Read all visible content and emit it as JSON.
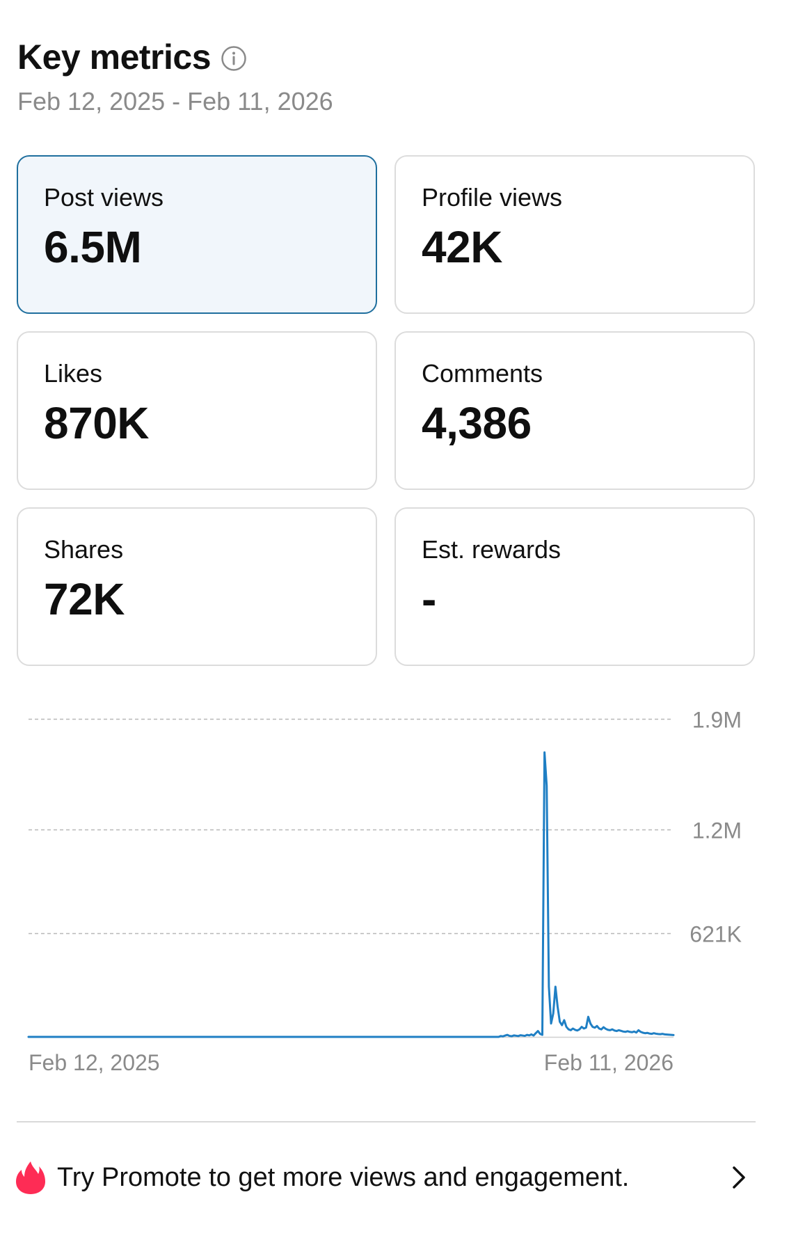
{
  "header": {
    "title": "Key metrics",
    "date_range": "Feb 12, 2025 - Feb 11, 2026"
  },
  "icons": {
    "info": "info-circle-icon",
    "flame": "flame-icon",
    "chevron": "chevron-right-icon"
  },
  "cards": [
    {
      "label": "Post views",
      "value": "6.5M",
      "selected": true
    },
    {
      "label": "Profile views",
      "value": "42K",
      "selected": false
    },
    {
      "label": "Likes",
      "value": "870K",
      "selected": false
    },
    {
      "label": "Comments",
      "value": "4,386",
      "selected": false
    },
    {
      "label": "Shares",
      "value": "72K",
      "selected": false
    },
    {
      "label": "Est. rewards",
      "value": "-",
      "selected": false
    }
  ],
  "colors": {
    "line": "#1f7fc4",
    "selected_border": "#1f6f9e",
    "selected_bg": "#f1f6fb",
    "flame": "#fe2c55"
  },
  "chart_data": {
    "type": "line",
    "y_tick_labels": [
      "1.9M",
      "1.2M",
      "621K"
    ],
    "y_ticks": [
      1900000,
      1240000,
      621000
    ],
    "ylim": [
      0,
      1900000
    ],
    "x_tick_labels": [
      "Feb 12, 2025",
      "Feb 11, 2026"
    ],
    "grid": true,
    "series": [
      {
        "values": [
          0,
          0,
          0,
          0,
          0,
          0,
          0,
          0,
          0,
          0,
          0,
          0,
          0,
          0,
          0,
          0,
          0,
          0,
          0,
          0,
          0,
          0,
          0,
          0,
          0,
          0,
          0,
          0,
          0,
          0,
          0,
          0,
          0,
          0,
          0,
          0,
          0,
          0,
          0,
          0,
          0,
          0,
          0,
          0,
          0,
          0,
          0,
          0,
          0,
          0,
          0,
          0,
          0,
          0,
          0,
          0,
          0,
          0,
          0,
          0,
          0,
          0,
          0,
          0,
          0,
          0,
          0,
          0,
          0,
          0,
          0,
          0,
          0,
          0,
          0,
          0,
          0,
          0,
          0,
          0,
          0,
          0,
          0,
          0,
          0,
          0,
          0,
          0,
          0,
          0,
          0,
          0,
          0,
          0,
          0,
          0,
          0,
          0,
          0,
          0,
          0,
          0,
          0,
          0,
          0,
          0,
          0,
          0,
          0,
          0,
          0,
          0,
          0,
          0,
          0,
          0,
          0,
          0,
          0,
          0,
          0,
          0,
          0,
          0,
          0,
          0,
          0,
          0,
          0,
          0,
          0,
          0,
          0,
          0,
          0,
          0,
          0,
          0,
          0,
          0,
          0,
          0,
          0,
          0,
          0,
          0,
          0,
          0,
          0,
          0,
          0,
          0,
          0,
          0,
          0,
          0,
          0,
          0,
          0,
          0,
          0,
          0,
          0,
          0,
          0,
          0,
          0,
          0,
          0,
          0,
          0,
          0,
          0,
          0,
          0,
          0,
          0,
          0,
          0,
          0,
          0,
          0,
          0,
          0,
          0,
          0,
          0,
          0,
          0,
          0,
          0,
          0,
          0,
          0,
          0,
          0,
          0,
          0,
          0,
          0,
          0,
          0,
          0,
          0,
          0,
          0,
          0,
          0,
          0,
          0,
          0,
          0,
          0,
          0,
          0,
          0,
          5000,
          3000,
          8000,
          12000,
          6000,
          4000,
          9000,
          7000,
          5000,
          10000,
          8000,
          6000,
          12000,
          9000,
          15000,
          8000,
          22000,
          35000,
          18000,
          12000,
          1700000,
          1500000,
          300000,
          80000,
          140000,
          300000,
          180000,
          90000,
          70000,
          100000,
          60000,
          45000,
          40000,
          50000,
          42000,
          38000,
          45000,
          60000,
          50000,
          55000,
          120000,
          80000,
          60000,
          55000,
          65000,
          50000,
          45000,
          58000,
          48000,
          42000,
          40000,
          45000,
          38000,
          35000,
          40000,
          36000,
          32000,
          30000,
          34000,
          30000,
          28000,
          32000,
          26000,
          40000,
          30000,
          25000,
          22000,
          24000,
          20000,
          18000,
          22000,
          19000,
          17000,
          16000,
          18000,
          15000,
          14000,
          13000,
          12000,
          11000
        ]
      }
    ]
  },
  "promo": {
    "text": "Try Promote to get more views and engagement."
  }
}
